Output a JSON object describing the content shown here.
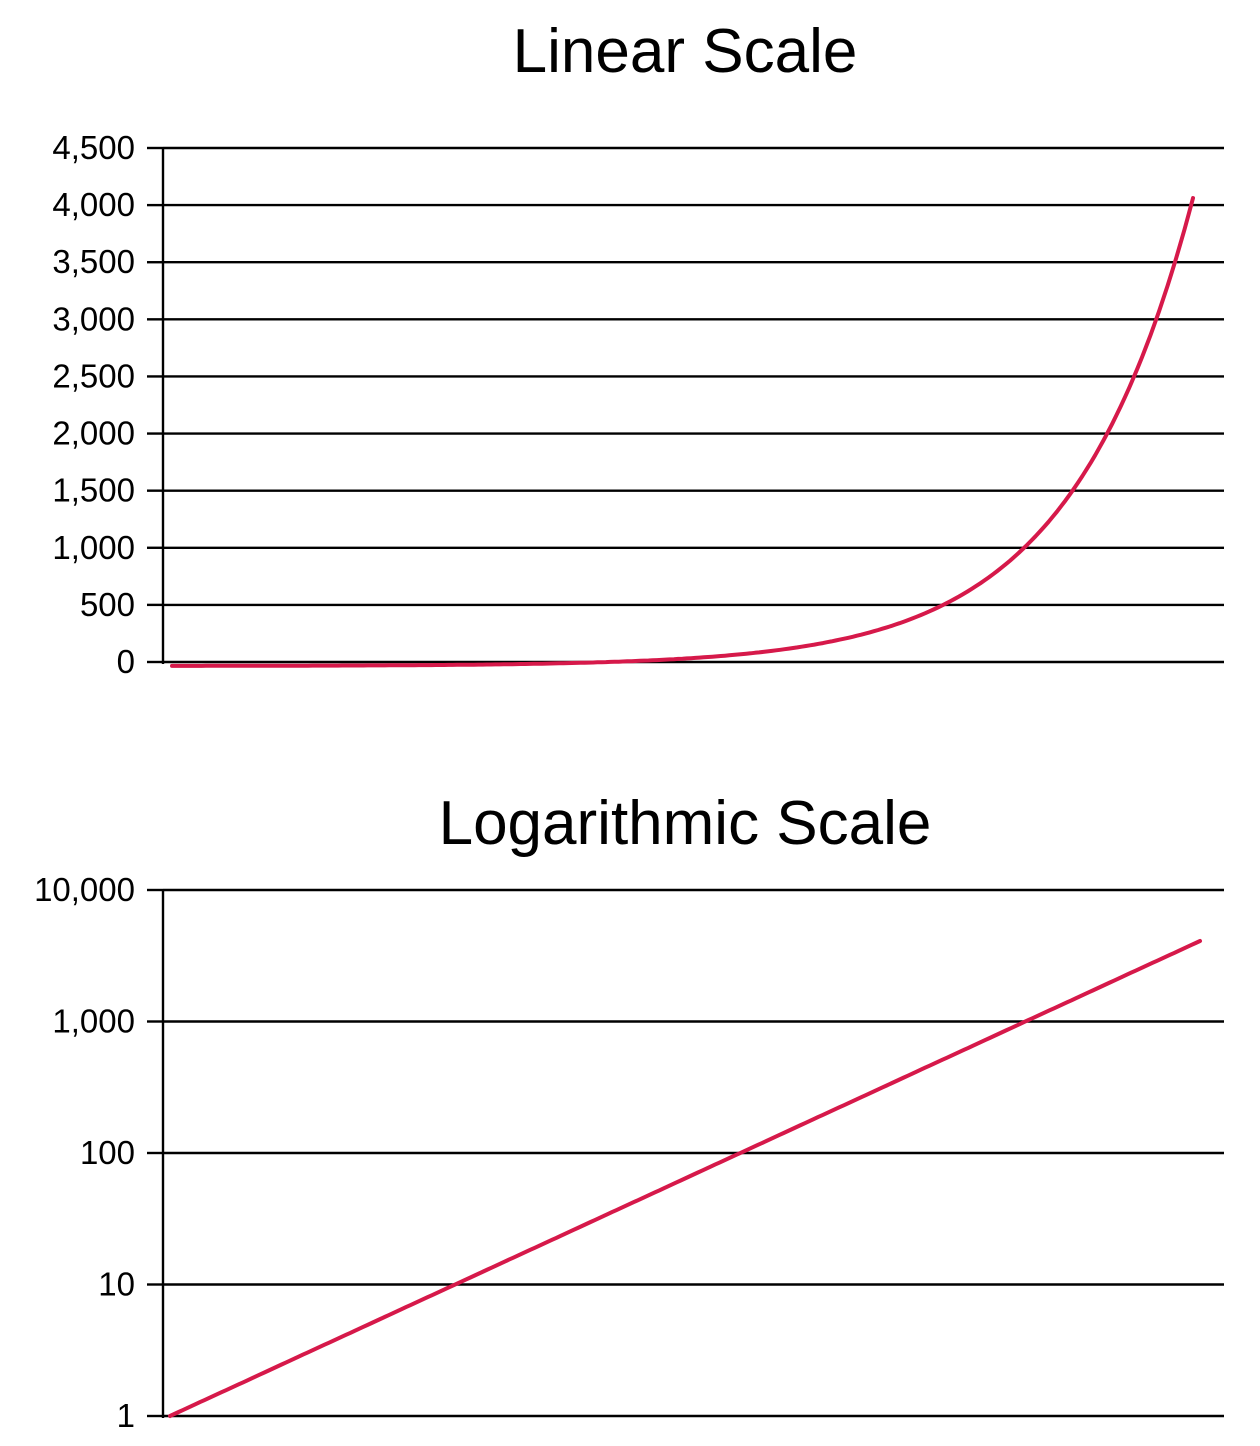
{
  "chart_data": [
    {
      "type": "line",
      "title": "Linear Scale",
      "xlabel": "",
      "ylabel": "",
      "y_scale": "linear",
      "ylim": [
        0,
        4500
      ],
      "y_ticks": [
        0,
        500,
        1000,
        1500,
        2000,
        2500,
        3000,
        3500,
        4000,
        4500
      ],
      "y_tick_labels": [
        "0",
        "500",
        "1,000",
        "1,500",
        "2,000",
        "2,500",
        "3,000",
        "3,500",
        "4,000",
        "4,500"
      ],
      "grid": true,
      "legend": "none",
      "series": [
        {
          "color": "#d6194a",
          "x": [
            0,
            1,
            2,
            3,
            4,
            5,
            6,
            7,
            8,
            9,
            10,
            11,
            12
          ],
          "y": [
            1,
            2,
            4,
            8,
            16,
            32,
            64,
            128,
            256,
            512,
            1024,
            2048,
            4096
          ]
        }
      ]
    },
    {
      "type": "line",
      "title": "Logarithmic Scale",
      "xlabel": "",
      "ylabel": "",
      "y_scale": "log",
      "ylim": [
        1,
        10000
      ],
      "y_ticks": [
        1,
        10,
        100,
        1000,
        10000
      ],
      "y_tick_labels": [
        "1",
        "10",
        "100",
        "1,000",
        "10,000"
      ],
      "grid": true,
      "legend": "none",
      "series": [
        {
          "color": "#d6194a",
          "x": [
            0,
            1,
            2,
            3,
            4,
            5,
            6,
            7,
            8,
            9,
            10,
            11,
            12
          ],
          "y": [
            1,
            2,
            4,
            8,
            16,
            32,
            64,
            128,
            256,
            512,
            1024,
            2048,
            4096
          ]
        }
      ]
    }
  ]
}
